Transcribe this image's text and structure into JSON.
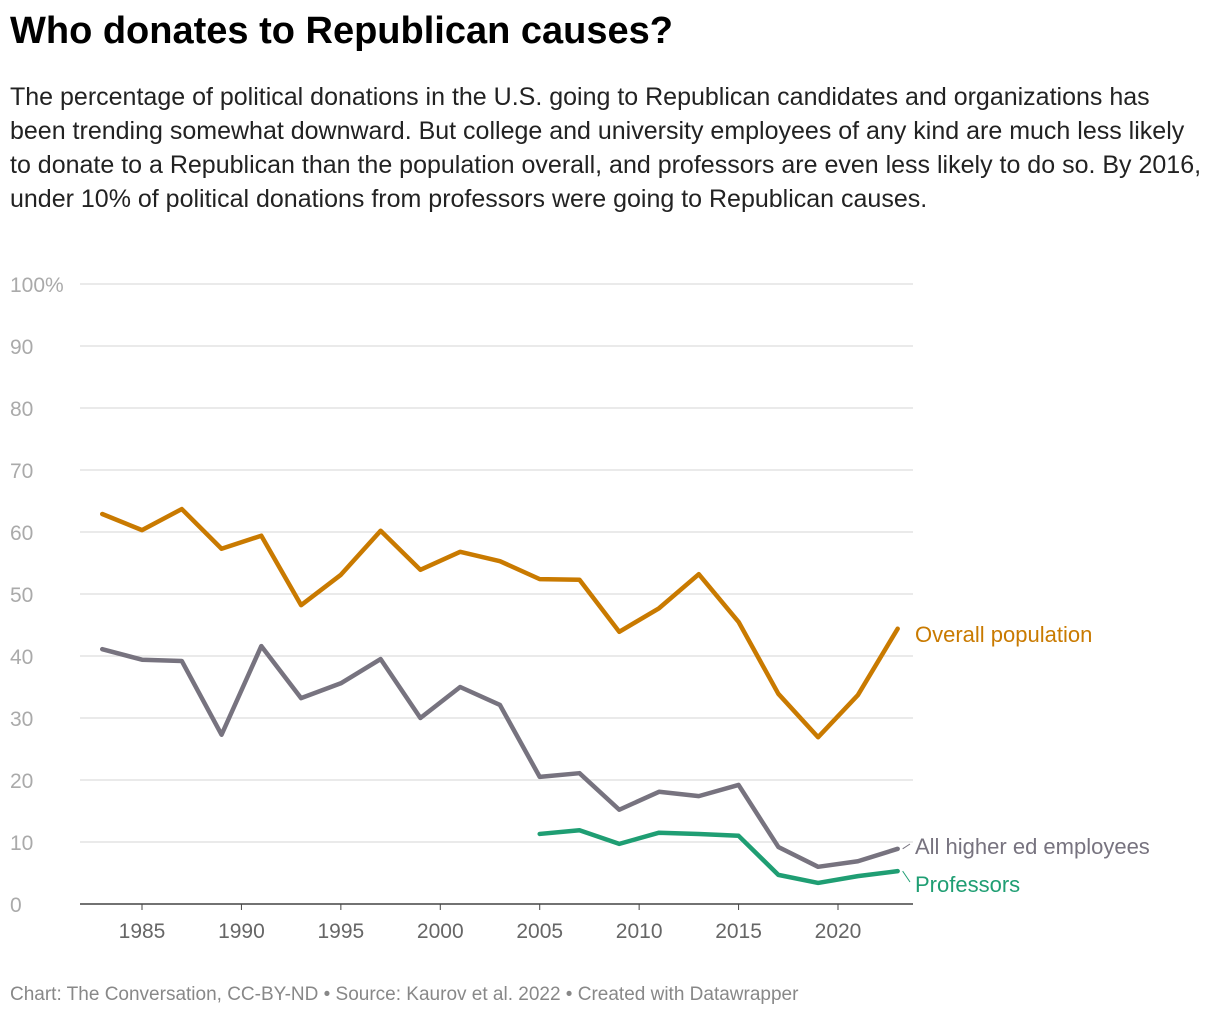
{
  "chart_data": {
    "type": "line",
    "title": "Who donates to Republican causes?",
    "subtitle": "The percentage of political donations in the U.S. going to Republican candidates and organizations has been trending somewhat downward. But college and university employees of any kind are much less likely to donate to a Republican than the population overall, and professors are even less likely to do so. By 2016, under 10% of political donations from professors were going to Republican causes.",
    "ylim": [
      0,
      100
    ],
    "xlim": [
      1982,
      2024
    ],
    "y_ticks": [
      "0",
      "10",
      "20",
      "30",
      "40",
      "50",
      "60",
      "70",
      "80",
      "90",
      "100%"
    ],
    "x_ticks": [
      "1985",
      "1990",
      "1995",
      "2000",
      "2005",
      "2010",
      "2015",
      "2020"
    ],
    "grid": true,
    "legend": "inline labels at line ends",
    "series": [
      {
        "name": "Overall population",
        "color": "#c97a00",
        "x": [
          1983,
          1985,
          1987,
          1989,
          1991,
          1993,
          1995,
          1997,
          1999,
          2001,
          2003,
          2005,
          2007,
          2009,
          2011,
          2013,
          2015,
          2017,
          2019,
          2021,
          2023
        ],
        "values": [
          62.9,
          60.3,
          63.7,
          57.3,
          59.4,
          48.2,
          53.1,
          60.2,
          53.9,
          56.8,
          55.3,
          52.4,
          52.3,
          43.9,
          47.7,
          53.2,
          45.5,
          33.9,
          26.9,
          33.7,
          44.4
        ]
      },
      {
        "name": "All higher ed employees",
        "color": "#77737f",
        "x": [
          1983,
          1985,
          1987,
          1989,
          1991,
          1993,
          1995,
          1997,
          1999,
          2001,
          2003,
          2005,
          2007,
          2009,
          2011,
          2013,
          2015,
          2017,
          2019,
          2021,
          2023
        ],
        "values": [
          41.1,
          39.4,
          39.2,
          27.3,
          41.6,
          33.2,
          35.6,
          39.5,
          30.0,
          35.0,
          32.1,
          20.5,
          21.1,
          15.2,
          18.1,
          17.4,
          19.2,
          9.2,
          6.0,
          6.9,
          8.9
        ]
      },
      {
        "name": "Professors",
        "color": "#1f9e73",
        "x": [
          2005,
          2007,
          2009,
          2011,
          2013,
          2015,
          2017,
          2019,
          2021,
          2023
        ],
        "values": [
          11.3,
          11.9,
          9.7,
          11.5,
          11.3,
          11.0,
          4.7,
          3.4,
          4.5,
          5.3
        ]
      }
    ]
  },
  "footer": "Chart: The Conversation, CC-BY-ND • Source: Kaurov et al. 2022 • Created with Datawrapper"
}
